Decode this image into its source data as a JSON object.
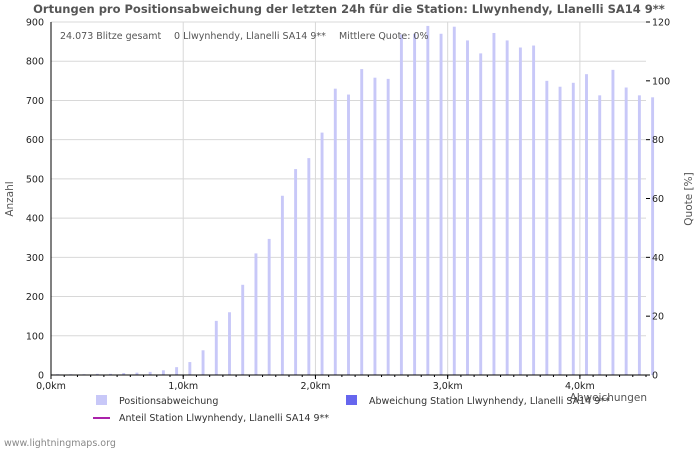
{
  "chart_data": {
    "type": "bar",
    "title": "Ortungen pro Positionsabweichung der letzten 24h für die Station: Llwynhendy, Llanelli SA14 9**",
    "stats": {
      "total": "24.073 Blitze gesamt",
      "station": "0 Llwynhendy, Llanelli SA14 9**",
      "quote": "Mittlere Quote: 0%"
    },
    "xlabel": "Abweichungen",
    "ylabel_left": "Anzahl",
    "ylabel_right": "Quote [%]",
    "ylim_left": [
      0,
      900
    ],
    "ylim_right": [
      0,
      120
    ],
    "xlim_km": [
      0,
      4.5
    ],
    "left_ticks": [
      "0",
      "100",
      "200",
      "300",
      "400",
      "500",
      "600",
      "700",
      "800",
      "900"
    ],
    "right_ticks": [
      "0",
      "20",
      "40",
      "60",
      "80",
      "100",
      "120"
    ],
    "x_ticks": [
      "0,0km",
      "1,0km",
      "2,0km",
      "3,0km",
      "4,0km"
    ],
    "bin_width_km": 0.1,
    "series": [
      {
        "name": "Positionsabweichung",
        "color": "#c8c8f8",
        "values": [
          2,
          2,
          2,
          3,
          3,
          5,
          6,
          8,
          12,
          20,
          33,
          63,
          138,
          160,
          230,
          310,
          347,
          457,
          525,
          553,
          618,
          730,
          715,
          780,
          758,
          755,
          868,
          870,
          890,
          870,
          888,
          853,
          820,
          872,
          853,
          835,
          840,
          750,
          735,
          745,
          767,
          713,
          778,
          733,
          713,
          708
        ]
      },
      {
        "name": "Abweichung Station Llwynhendy, Llanelli SA14 9**",
        "color": "#6666ee",
        "values": []
      },
      {
        "name": "Anteil Station Llwynhendy, Llanelli SA14 9**",
        "color": "#aa22aa",
        "values": []
      }
    ]
  },
  "footer": "www.lightningmaps.org"
}
